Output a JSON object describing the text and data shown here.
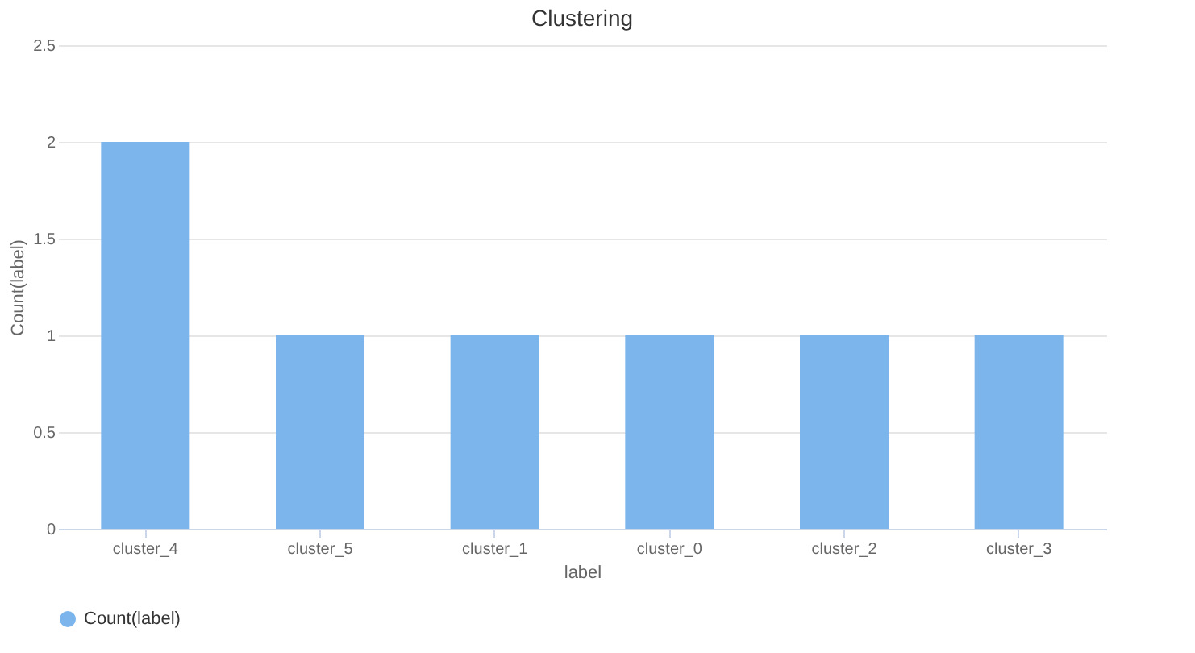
{
  "chart_data": {
    "type": "bar",
    "title": "Clustering",
    "xlabel": "label",
    "ylabel": "Count(label)",
    "categories": [
      "cluster_4",
      "cluster_5",
      "cluster_1",
      "cluster_0",
      "cluster_2",
      "cluster_3"
    ],
    "series": [
      {
        "name": "Count(label)",
        "color": "#7cb5ec",
        "values": [
          2,
          1,
          1,
          1,
          1,
          1
        ]
      }
    ],
    "ylim": [
      0,
      2.5
    ],
    "yticks": [
      0,
      0.5,
      1,
      1.5,
      2,
      2.5
    ],
    "grid": "y",
    "legend": "bottom"
  }
}
